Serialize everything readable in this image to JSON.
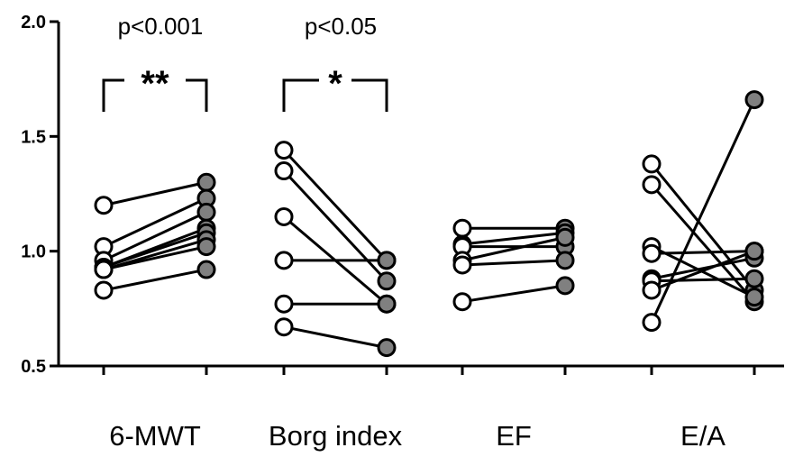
{
  "chart_data": {
    "type": "scatter",
    "title": "",
    "xlabel": "",
    "ylabel": "",
    "ylim": [
      0.5,
      2.0
    ],
    "yticks": [
      "0.5",
      "1.0",
      "1.5",
      "2.0"
    ],
    "grid": false,
    "colors": {
      "before": "#ffffff",
      "after": "#808080",
      "stroke": "#000000"
    },
    "categories": [
      "6-MWT",
      "Borg index",
      "EF",
      "E/A"
    ],
    "groups": [
      {
        "category": "6-MWT",
        "pairs": [
          [
            1.2,
            1.3
          ],
          [
            1.02,
            1.23
          ],
          [
            0.96,
            1.17
          ],
          [
            0.93,
            1.1
          ],
          [
            0.93,
            1.08
          ],
          [
            0.92,
            1.05
          ],
          [
            0.92,
            1.02
          ],
          [
            0.83,
            0.92
          ]
        ],
        "pvalue": "p<0.001",
        "significance": "**"
      },
      {
        "category": "Borg index",
        "pairs": [
          [
            1.44,
            0.96
          ],
          [
            1.35,
            0.87
          ],
          [
            1.15,
            0.77
          ],
          [
            0.96,
            0.96
          ],
          [
            0.77,
            0.77
          ],
          [
            0.67,
            0.58
          ]
        ],
        "pvalue": "p<0.05",
        "significance": "*"
      },
      {
        "category": "EF",
        "pairs": [
          [
            1.1,
            1.1
          ],
          [
            1.03,
            1.08
          ],
          [
            1.02,
            1.02
          ],
          [
            0.96,
            1.06
          ],
          [
            0.94,
            0.96
          ],
          [
            0.78,
            0.85
          ]
        ],
        "pvalue": "",
        "significance": ""
      },
      {
        "category": "E/A",
        "pairs": [
          [
            1.38,
            0.83
          ],
          [
            1.29,
            0.78
          ],
          [
            1.02,
            0.8
          ],
          [
            0.99,
            1.0
          ],
          [
            0.88,
            0.97
          ],
          [
            0.87,
            0.88
          ],
          [
            0.83,
            1.0
          ],
          [
            0.69,
            1.66
          ]
        ],
        "pvalue": "",
        "significance": ""
      }
    ]
  }
}
